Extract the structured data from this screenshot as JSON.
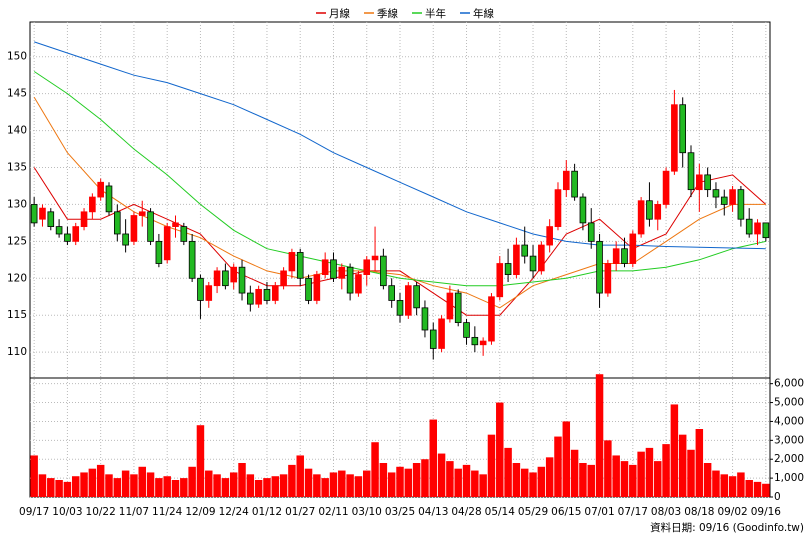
{
  "chart_data": {
    "type": "candlestick",
    "categories": [
      "09/17",
      null,
      null,
      null,
      "10/03",
      null,
      null,
      null,
      "10/22",
      null,
      null,
      null,
      "11/07",
      null,
      null,
      null,
      "11/24",
      null,
      null,
      null,
      "12/09",
      null,
      null,
      null,
      "12/24",
      null,
      null,
      null,
      "01/12",
      null,
      null,
      null,
      "01/27",
      null,
      null,
      null,
      "02/11",
      null,
      null,
      null,
      "03/10",
      null,
      null,
      null,
      "03/25",
      null,
      null,
      null,
      "04/13",
      null,
      null,
      null,
      "04/28",
      null,
      null,
      null,
      "05/14",
      null,
      null,
      null,
      "05/29",
      null,
      null,
      null,
      "06/15",
      null,
      null,
      null,
      "07/01",
      null,
      null,
      null,
      "07/17",
      null,
      null,
      null,
      "08/03",
      null,
      null,
      null,
      "08/18",
      null,
      null,
      null,
      "09/02",
      null,
      null,
      null,
      "09/16"
    ],
    "ohlc": [
      [
        130,
        131,
        127,
        127.5
      ],
      [
        128,
        130,
        127,
        129.5
      ],
      [
        129,
        129.5,
        126.5,
        127
      ],
      [
        127,
        128,
        125.5,
        126
      ],
      [
        126,
        127,
        124.5,
        125
      ],
      [
        125,
        127.5,
        124.5,
        127
      ],
      [
        127,
        129.5,
        126.5,
        129
      ],
      [
        129,
        131.5,
        128,
        131
      ],
      [
        131,
        133.5,
        130.5,
        133
      ],
      [
        132.5,
        133,
        128.5,
        129
      ],
      [
        129,
        130,
        125,
        126
      ],
      [
        126,
        128,
        123.5,
        124.5
      ],
      [
        125,
        129,
        124.5,
        128.5
      ],
      [
        128.5,
        130.5,
        127,
        129
      ],
      [
        129,
        129.5,
        124.5,
        125
      ],
      [
        125,
        126,
        121.5,
        122
      ],
      [
        122.5,
        127.5,
        122,
        127
      ],
      [
        127,
        128.5,
        125.5,
        127.5
      ],
      [
        127,
        127.5,
        124.5,
        125
      ],
      [
        125,
        126,
        119.5,
        120
      ],
      [
        120,
        120.5,
        114.5,
        117
      ],
      [
        117,
        119.5,
        116,
        119
      ],
      [
        119,
        121.5,
        118,
        121
      ],
      [
        121,
        122,
        118.5,
        119
      ],
      [
        119.5,
        122,
        118.5,
        121.5
      ],
      [
        121.5,
        122.5,
        117,
        118
      ],
      [
        118,
        119,
        115.5,
        116.5
      ],
      [
        116.5,
        119,
        116,
        118.5
      ],
      [
        118.5,
        119.5,
        116.5,
        117
      ],
      [
        117,
        119.5,
        116.5,
        119
      ],
      [
        119,
        121.5,
        118.5,
        121
      ],
      [
        121,
        124,
        120,
        123.5
      ],
      [
        123.5,
        124,
        119,
        120
      ],
      [
        120,
        120.5,
        116.5,
        117
      ],
      [
        117,
        121,
        116.5,
        120.5
      ],
      [
        120.5,
        123.5,
        120,
        122.5
      ],
      [
        122.5,
        123.5,
        119.5,
        120
      ],
      [
        120,
        122,
        118.5,
        121.5
      ],
      [
        121.5,
        122,
        117,
        118
      ],
      [
        118,
        121,
        117.5,
        120.5
      ],
      [
        120.5,
        123,
        119,
        122.5
      ],
      [
        122.5,
        127,
        121,
        123
      ],
      [
        123,
        124,
        118.5,
        119
      ],
      [
        119,
        120,
        116,
        117
      ],
      [
        117,
        118,
        114,
        115
      ],
      [
        115,
        119.5,
        114.5,
        119
      ],
      [
        119,
        119.5,
        115,
        116
      ],
      [
        116,
        117,
        112,
        113
      ],
      [
        113,
        114,
        109,
        110.5
      ],
      [
        110.5,
        115,
        110,
        114.5
      ],
      [
        114.5,
        119,
        114,
        118
      ],
      [
        118,
        118.5,
        113.5,
        114
      ],
      [
        114,
        114.5,
        111,
        112
      ],
      [
        112,
        113.5,
        110,
        111
      ],
      [
        111,
        112,
        109.5,
        111.5
      ],
      [
        111.5,
        118,
        111,
        117.5
      ],
      [
        117.5,
        123,
        117,
        122
      ],
      [
        122,
        124,
        119.5,
        120.5
      ],
      [
        120.5,
        125.5,
        120,
        124.5
      ],
      [
        124.5,
        127,
        122,
        123
      ],
      [
        123,
        124.5,
        120,
        121
      ],
      [
        121,
        125,
        120.5,
        124.5
      ],
      [
        124.5,
        128,
        123.5,
        127
      ],
      [
        127,
        133,
        126.5,
        132
      ],
      [
        132,
        136,
        131,
        134.5
      ],
      [
        134.5,
        135.5,
        130.5,
        131
      ],
      [
        131,
        131.5,
        126.5,
        127.5
      ],
      [
        127.5,
        129.5,
        124,
        125
      ],
      [
        125,
        126,
        116,
        118
      ],
      [
        118,
        122.5,
        117.5,
        122
      ],
      [
        122,
        125,
        121,
        124
      ],
      [
        124,
        125.5,
        121.5,
        122
      ],
      [
        122,
        126.5,
        121.5,
        126
      ],
      [
        126,
        131,
        125.5,
        130.5
      ],
      [
        130.5,
        133,
        127,
        128
      ],
      [
        128,
        130.5,
        126.5,
        130
      ],
      [
        130,
        135,
        129.5,
        134.5
      ],
      [
        134.5,
        145.5,
        134,
        143.5
      ],
      [
        143.5,
        144.5,
        135,
        137
      ],
      [
        137,
        138,
        131,
        132
      ],
      [
        132,
        135.5,
        129,
        134
      ],
      [
        134,
        135,
        131,
        132
      ],
      [
        132,
        133,
        129.5,
        131
      ],
      [
        131,
        132,
        128.5,
        130
      ],
      [
        130,
        132.5,
        129,
        132
      ],
      [
        132,
        132.5,
        127,
        128
      ],
      [
        128,
        129.5,
        125.5,
        126
      ],
      [
        126,
        128,
        124.5,
        127.5
      ],
      [
        127.5,
        127.5,
        125,
        125.5
      ]
    ],
    "up_color": "#ff0000",
    "down_color": "#22b922",
    "volume": [
      2200,
      1200,
      1000,
      900,
      800,
      1100,
      1300,
      1500,
      1700,
      1200,
      1000,
      1400,
      1200,
      1600,
      1300,
      1000,
      1100,
      900,
      1000,
      1600,
      3800,
      1400,
      1200,
      1000,
      1300,
      1800,
      1200,
      900,
      1000,
      1100,
      1200,
      1700,
      2200,
      1500,
      1200,
      1000,
      1300,
      1400,
      1200,
      1100,
      1400,
      2900,
      1800,
      1300,
      1600,
      1500,
      1800,
      2000,
      4100,
      2300,
      1900,
      1500,
      1700,
      1400,
      1200,
      3300,
      5000,
      2600,
      1800,
      1500,
      1300,
      1600,
      2100,
      3200,
      4000,
      2500,
      1800,
      1700,
      6500,
      3000,
      2200,
      1900,
      1700,
      2400,
      2600,
      1900,
      2800,
      4900,
      3300,
      2500,
      3600,
      1800,
      1400,
      1200,
      1100,
      1300,
      900,
      800,
      700
    ],
    "volume_color": "#ff0000",
    "moving_averages": [
      {
        "name": "月線",
        "color": "#dd0000",
        "x": [
          "09/17",
          "10/03",
          "10/22",
          "11/07",
          "11/24",
          "12/09",
          "12/24",
          "01/12",
          "01/27",
          "02/11",
          "03/10",
          "03/25",
          "04/13",
          "04/28",
          "05/14",
          "05/29",
          "06/15",
          "07/01",
          "07/17",
          "08/03",
          "08/18",
          "09/02",
          "09/16"
        ],
        "values": [
          135,
          128,
          128,
          130,
          128,
          126,
          121,
          119,
          119,
          120,
          121,
          121,
          118,
          115,
          115,
          120,
          126,
          128,
          124,
          126,
          133,
          134,
          130
        ]
      },
      {
        "name": "季線",
        "color": "#ee7711",
        "x": [
          "09/17",
          "10/03",
          "10/22",
          "11/07",
          "11/24",
          "12/09",
          "12/24",
          "01/12",
          "01/27",
          "02/11",
          "03/10",
          "03/25",
          "04/13",
          "04/28",
          "05/14",
          "05/29",
          "06/15",
          "07/01",
          "07/17",
          "08/03",
          "08/18",
          "09/02",
          "09/16"
        ],
        "values": [
          144.5,
          137,
          132,
          129,
          127,
          125.5,
          123,
          121,
          120,
          121,
          121,
          120.5,
          119,
          118,
          116,
          119,
          120.5,
          122,
          122,
          125,
          128,
          130,
          130
        ]
      },
      {
        "name": "半年",
        "color": "#22cc22",
        "x": [
          "09/17",
          "10/03",
          "10/22",
          "11/07",
          "11/24",
          "12/09",
          "12/24",
          "01/12",
          "01/27",
          "02/11",
          "03/10",
          "03/25",
          "04/13",
          "04/28",
          "05/14",
          "05/29",
          "06/15",
          "07/01",
          "07/17",
          "08/03",
          "08/18",
          "09/02",
          "09/16"
        ],
        "values": [
          148,
          145,
          141.5,
          137.5,
          134,
          130,
          126.5,
          124,
          123,
          122,
          121,
          120,
          119.5,
          119,
          119,
          119.5,
          120,
          121,
          121,
          121.5,
          122.5,
          124,
          125
        ]
      },
      {
        "name": "年線",
        "color": "#1166cc",
        "x": [
          "09/17",
          "10/03",
          "10/22",
          "11/07",
          "11/24",
          "12/09",
          "12/24",
          "01/12",
          "01/27",
          "02/11",
          "03/10",
          "03/25",
          "04/13",
          "04/28",
          "05/14",
          "05/29",
          "06/15",
          "07/01",
          "07/17",
          "08/03",
          "08/18",
          "09/02",
          "09/16"
        ],
        "values": [
          152,
          150.5,
          149,
          147.5,
          146.5,
          145,
          143.5,
          141.5,
          139.5,
          137,
          135,
          133,
          131,
          129,
          127.5,
          126,
          125,
          124.5,
          124.5,
          124.3,
          124.2,
          124.1,
          124
        ]
      }
    ],
    "ylim": [
      106.5,
      154.7
    ],
    "yticks": [
      110,
      115,
      120,
      125,
      130,
      135,
      140,
      145,
      150
    ],
    "y2lim": [
      0,
      6300
    ],
    "y2ticks": [
      0,
      {
        "value": 1000,
        "label": "1,000"
      },
      {
        "value": 2000,
        "label": "2,000"
      },
      {
        "value": 3000,
        "label": "3,000"
      },
      {
        "value": 4000,
        "label": "4,000"
      },
      {
        "value": 5000,
        "label": "5,000"
      },
      {
        "value": 6000,
        "label": "6,000"
      }
    ],
    "grid": true,
    "legend": "top",
    "source": "資料日期: 09/16 (Goodinfo.tw)"
  }
}
